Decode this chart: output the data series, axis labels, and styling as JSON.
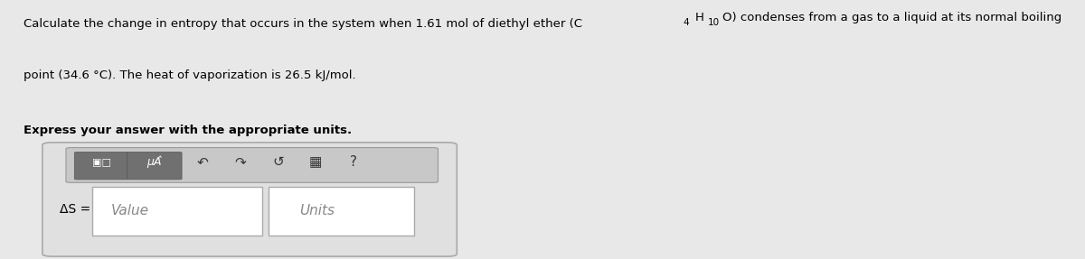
{
  "bg_color": "#e8e8e8",
  "panel_bg": "#e8e8e8",
  "white_bg": "#f5f5f5",
  "title_text_line1": "Calculate the change in entropy that occurs in the system when 1.61 mol of diethyl ether (C",
  "title_text_sup1": "4",
  "title_text_mid1": "H",
  "title_text_sup2": "10",
  "title_text_mid2": "O) condenses from a gas to a liquid at its normal boiling",
  "title_text_line2": "point (34.6 °C). The heat of vaporization is 26.5 kJ/mol.",
  "bold_line": "Express your answer with the appropriate units.",
  "delta_s_label": "ΔS =",
  "value_placeholder": "Value",
  "units_placeholder": "Units",
  "toolbar_icons": [
    "▣",
    "μÅ",
    "↶",
    "↷",
    "↺",
    "⊡",
    "?"
  ],
  "box_outer_color": "#d0d0d0",
  "box_inner_color": "#ffffff",
  "toolbar_box_color": "#888888",
  "fig_width": 12.0,
  "fig_height": 2.87
}
